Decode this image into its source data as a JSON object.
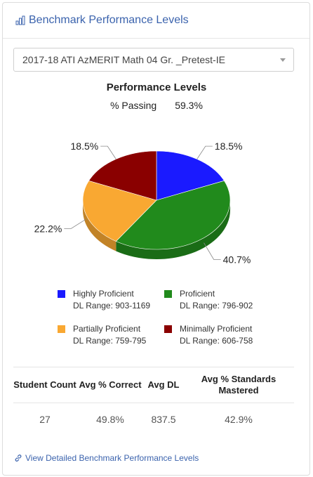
{
  "header": {
    "title": "Benchmark Performance Levels",
    "icon": "bar-chart-icon"
  },
  "assessment_select": {
    "selected": "2017-18 ATI AzMERIT Math 04 Gr. _Pretest-IE"
  },
  "chart_data": {
    "type": "pie",
    "title": "Performance Levels",
    "passing_label": "% Passing",
    "passing_value": "59.3%",
    "series": [
      {
        "name": "Highly Proficient",
        "value": 18.5,
        "label": "18.5%",
        "color": "#1a1aff",
        "range": "DL Range: 903-1169"
      },
      {
        "name": "Proficient",
        "value": 40.7,
        "label": "40.7%",
        "color": "#218a1c",
        "range": "DL Range: 796-902"
      },
      {
        "name": "Partially Proficient",
        "value": 22.2,
        "label": "22.2%",
        "color": "#f9a832",
        "range": "DL Range: 759-795"
      },
      {
        "name": "Minimally Proficient",
        "value": 18.5,
        "label": "18.5%",
        "color": "#8a0000",
        "range": "DL Range: 606-758"
      }
    ]
  },
  "stats": {
    "headers": [
      "Student Count",
      "Avg % Correct",
      "Avg DL",
      "Avg % Standards Mastered"
    ],
    "values": [
      "27",
      "49.8%",
      "837.5",
      "42.9%"
    ]
  },
  "footer": {
    "link_text": "View Detailed Benchmark Performance Levels",
    "icon": "link-icon"
  }
}
